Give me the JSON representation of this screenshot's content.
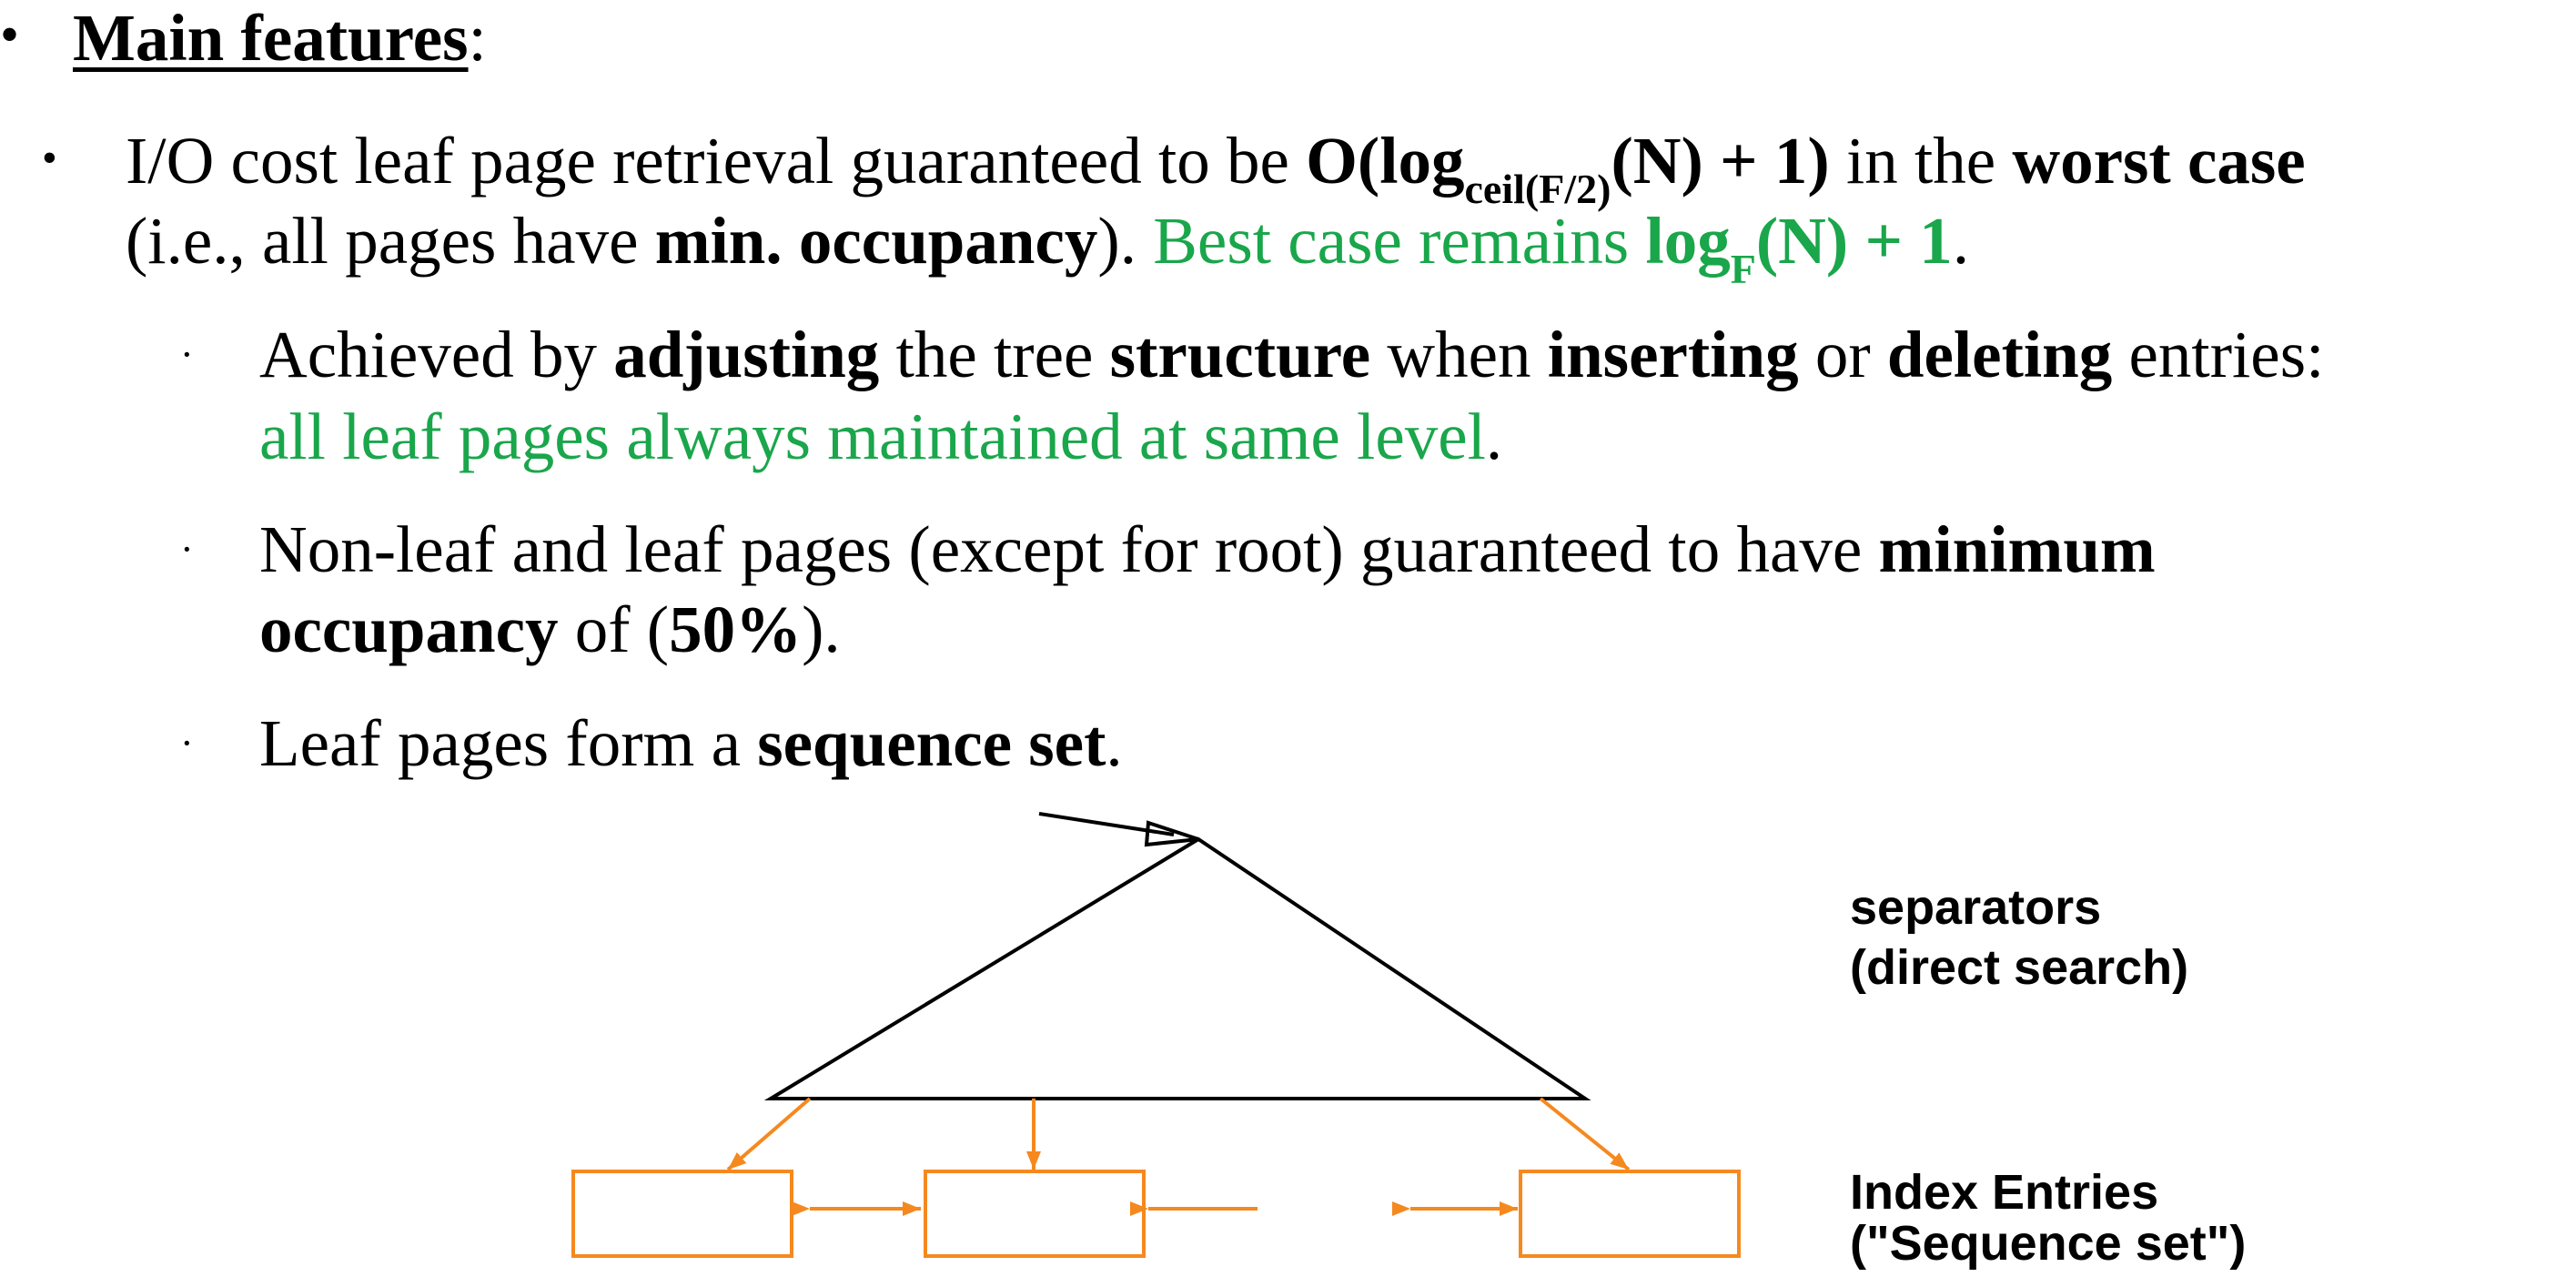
{
  "colors": {
    "text": "#000000",
    "green": "#1aa64b",
    "orange": "#f5891f"
  },
  "bullets": {
    "level1": "•",
    "level2": "•",
    "level3": "·"
  },
  "heading": {
    "title": "Main features",
    "colon": ":"
  },
  "point1": {
    "l1_pre": "I/O cost leaf page retrieval guaranteed to be ",
    "l1_formula_a": "O(log",
    "l1_formula_sub": "ceil(F/2)",
    "l1_formula_b": "(N) + 1)",
    "l1_mid": " in the ",
    "l1_worst": "worst case",
    "l2_pre": "(i.e., all pages have ",
    "l2_min": "min. occupancy",
    "l2_post": "). ",
    "l2_best": "Best case remains ",
    "l2_log": "log",
    "l2_sub": "F",
    "l2_rest": "(N) + 1",
    "l2_end": "."
  },
  "sub1": {
    "l1_a": "Achieved by ",
    "l1_adjusting": "adjusting",
    "l1_b": " the tree ",
    "l1_structure": "structure",
    "l1_c": " when ",
    "l1_inserting": "inserting",
    "l1_d": " or ",
    "l1_deleting": "deleting",
    "l1_e": " entries:",
    "l2_green": "all leaf pages always maintained at same level",
    "l2_end": "."
  },
  "sub2": {
    "l1_a": "Non-leaf and leaf pages (except for root) guaranteed to have ",
    "l1_min": "minimum",
    "l2_occ": "occupancy",
    "l2_a": " of (",
    "l2_pct": "50%",
    "l2_b": ")."
  },
  "sub3": {
    "l1_a": "Leaf pages form a ",
    "l1_seq": "sequence set",
    "l1_end": "."
  },
  "diagram": {
    "separators_l1": "separators",
    "separators_l2": "(direct search)",
    "index_l1": "Index Entries",
    "index_l2": "(\"Sequence set\")"
  }
}
